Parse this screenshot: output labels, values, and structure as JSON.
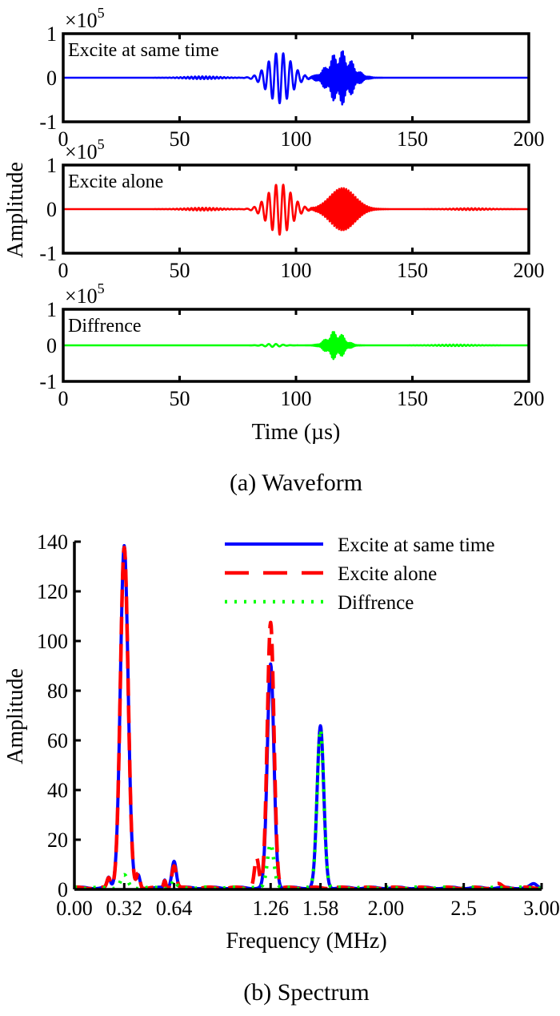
{
  "chart_data": [
    {
      "id": "waveform",
      "type": "line",
      "caption": "(a) Waveform",
      "xlabel": "Time (µs)",
      "ylabel": "Amplitude",
      "xlim": [
        0,
        200
      ],
      "ylim": [
        -1,
        1
      ],
      "y_multiplier": "×10",
      "y_multiplier_exp": "5",
      "xticks": [
        "0",
        "50",
        "100",
        "150",
        "200"
      ],
      "xtick_values": [
        0,
        50,
        100,
        150,
        200
      ],
      "yticks": [
        "-1",
        "0",
        "1"
      ],
      "ytick_values": [
        -1,
        0,
        1
      ],
      "grid": false,
      "panels": [
        {
          "name": "Excite at same time",
          "color": "#0000ff",
          "packets": [
            {
              "center": 93,
              "width": 7,
              "amp": 0.58,
              "freq": 0.32,
              "type": "tone"
            },
            {
              "center": 119,
              "width": 7,
              "amp": 0.62,
              "freq": 1.4,
              "type": "beat"
            },
            {
              "center": 60,
              "width": 10,
              "amp": 0.03,
              "freq": 0.64,
              "type": "tone"
            }
          ]
        },
        {
          "name": "Excite alone",
          "color": "#ff0000",
          "packets": [
            {
              "center": 93,
              "width": 7,
              "amp": 0.58,
              "freq": 0.32,
              "type": "tone"
            },
            {
              "center": 120,
              "width": 7.5,
              "amp": 0.48,
              "freq": 1.26,
              "type": "solid"
            },
            {
              "center": 60,
              "width": 10,
              "amp": 0.03,
              "freq": 0.64,
              "type": "tone"
            },
            {
              "center": 175,
              "width": 10,
              "amp": 0.02,
              "freq": 0.64,
              "type": "tone"
            }
          ]
        },
        {
          "name": "Diffrence",
          "color": "#00ff00",
          "packets": [
            {
              "center": 117,
              "width": 5,
              "amp": 0.4,
              "freq": 1.58,
              "type": "beat"
            },
            {
              "center": 90,
              "width": 5,
              "amp": 0.04,
              "freq": 0.32,
              "type": "tone"
            },
            {
              "center": 168,
              "width": 10,
              "amp": 0.02,
              "freq": 0.64,
              "type": "tone"
            }
          ]
        }
      ]
    },
    {
      "id": "spectrum",
      "type": "line",
      "caption": "(b) Spectrum",
      "xlabel": "Frequency (MHz)",
      "ylabel": "Amplitude",
      "xlim": [
        0,
        3.0
      ],
      "ylim": [
        0,
        140
      ],
      "xticks": [
        "0.00",
        "0.32",
        "0.64",
        "1.26",
        "1.58",
        "2.00",
        "2.5",
        "3.00"
      ],
      "xtick_values": [
        0.0,
        0.32,
        0.64,
        1.26,
        1.58,
        2.0,
        2.5,
        3.0
      ],
      "yticks": [
        "0",
        "20",
        "40",
        "60",
        "80",
        "100",
        "120",
        "140"
      ],
      "ytick_values": [
        0,
        20,
        40,
        60,
        80,
        100,
        120,
        140
      ],
      "grid": false,
      "legend_position": "top-right",
      "series": [
        {
          "name": "Excite at same time",
          "color": "#0000ff",
          "style": "solid",
          "peaks": [
            {
              "x": 0.32,
              "y": 138,
              "w": 0.035
            },
            {
              "x": 0.22,
              "y": 4,
              "w": 0.015
            },
            {
              "x": 0.41,
              "y": 5,
              "w": 0.015
            },
            {
              "x": 0.64,
              "y": 11,
              "w": 0.02
            },
            {
              "x": 0.58,
              "y": 3,
              "w": 0.01
            },
            {
              "x": 1.26,
              "y": 90,
              "w": 0.03
            },
            {
              "x": 1.58,
              "y": 65,
              "w": 0.03
            },
            {
              "x": 2.95,
              "y": 1.5,
              "w": 0.03
            }
          ]
        },
        {
          "name": "Excite alone",
          "color": "#ff0000",
          "style": "dashed",
          "peaks": [
            {
              "x": 0.32,
              "y": 137,
              "w": 0.035
            },
            {
              "x": 0.22,
              "y": 4,
              "w": 0.015
            },
            {
              "x": 0.41,
              "y": 6,
              "w": 0.015
            },
            {
              "x": 0.64,
              "y": 9,
              "w": 0.02
            },
            {
              "x": 0.58,
              "y": 3,
              "w": 0.01
            },
            {
              "x": 1.26,
              "y": 107,
              "w": 0.03
            },
            {
              "x": 1.17,
              "y": 12,
              "w": 0.02
            },
            {
              "x": 2.72,
              "y": 1.5,
              "w": 0.03
            }
          ]
        },
        {
          "name": "Diffrence",
          "color": "#00ff00",
          "style": "dotted",
          "peaks": [
            {
              "x": 0.32,
              "y": 5,
              "w": 0.03
            },
            {
              "x": 0.64,
              "y": 3,
              "w": 0.02
            },
            {
              "x": 1.26,
              "y": 18,
              "w": 0.03
            },
            {
              "x": 1.58,
              "y": 64,
              "w": 0.03
            }
          ]
        }
      ]
    }
  ]
}
